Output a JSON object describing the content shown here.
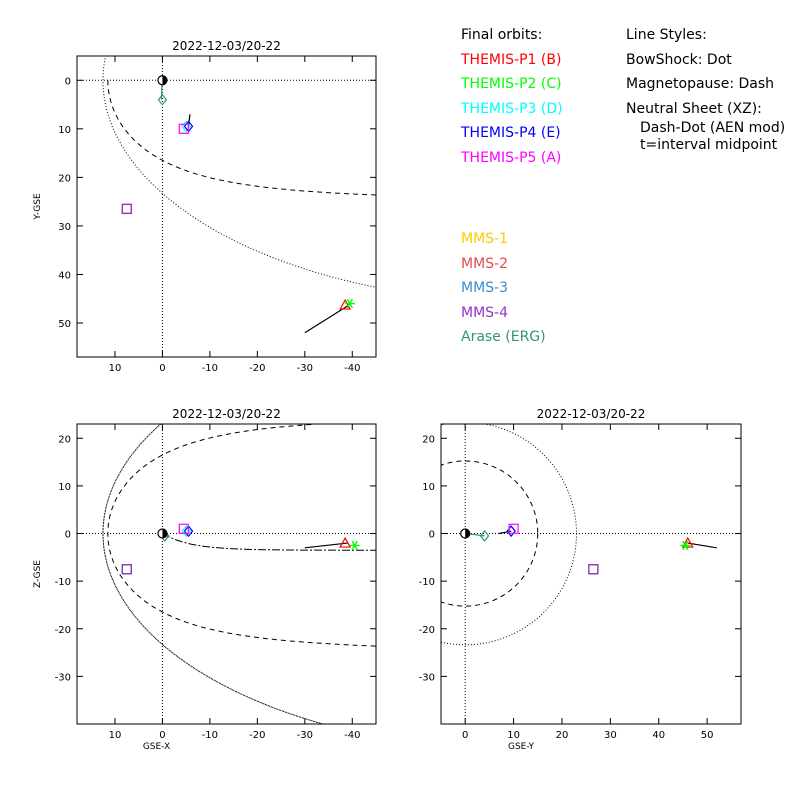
{
  "legend": {
    "final_orbits_title": "Final orbits:",
    "themis": [
      {
        "label": "THEMIS-P1 (B)",
        "color": "#ff0000"
      },
      {
        "label": "THEMIS-P2 (C)",
        "color": "#00ff00"
      },
      {
        "label": "THEMIS-P3 (D)",
        "color": "#00ffff"
      },
      {
        "label": "THEMIS-P4 (E)",
        "color": "#0000ff"
      },
      {
        "label": "THEMIS-P5 (A)",
        "color": "#ff00ff"
      }
    ],
    "mms": [
      {
        "label": "MMS-1",
        "color": "#ffc800"
      },
      {
        "label": "MMS-2",
        "color": "#e14b4b"
      },
      {
        "label": "MMS-3",
        "color": "#3c8cc8"
      },
      {
        "label": "MMS-4",
        "color": "#9632c8"
      },
      {
        "label": "Arase (ERG)",
        "color": "#32966e"
      }
    ],
    "line_styles_title": "Line Styles:",
    "bowshock": "BowShock: Dot",
    "magnetopause": "Magnetopause: Dash",
    "neutral_sheet": "Neutral Sheet (XZ):",
    "neutral_sheet_style": "Dash-Dot (AEN mod)",
    "midpoint_note": "t=interval midpoint"
  },
  "chart_data": [
    {
      "type": "scatter",
      "panel": "xy",
      "title": "2022-12-03/20-22",
      "xlabel": "",
      "ylabel": "Y-GSE",
      "xlim": [
        18,
        -45
      ],
      "ylim": [
        -5,
        57
      ],
      "y_inverted": true,
      "xticks": [
        10,
        0,
        -10,
        -20,
        -30,
        -40
      ],
      "yticks": [
        0,
        10,
        20,
        30,
        40,
        50
      ],
      "grid": false,
      "points": [
        {
          "name": "THEMIS-P1",
          "x": -38.5,
          "y": 46.3,
          "marker": "triangle",
          "color": "#ff0000"
        },
        {
          "name": "THEMIS-P2",
          "x": -39.5,
          "y": 46.0,
          "marker": "asterisk",
          "color": "#00ff00"
        },
        {
          "name": "THEMIS-P3",
          "x": -5.0,
          "y": 9.5,
          "marker": "diamond",
          "color": "#00ffff"
        },
        {
          "name": "THEMIS-P4",
          "x": -5.5,
          "y": 9.5,
          "marker": "diamond",
          "color": "#0000ff"
        },
        {
          "name": "THEMIS-P5",
          "x": -4.5,
          "y": 10.0,
          "marker": "square",
          "color": "#ff00ff"
        },
        {
          "name": "MMS-1",
          "x": 7.5,
          "y": 26.5,
          "marker": "square",
          "color": "#ffc800"
        },
        {
          "name": "MMS-2",
          "x": 7.5,
          "y": 26.5,
          "marker": "square",
          "color": "#e14b4b"
        },
        {
          "name": "MMS-3",
          "x": 7.5,
          "y": 26.5,
          "marker": "square",
          "color": "#3c8cc8"
        },
        {
          "name": "MMS-4",
          "x": 7.5,
          "y": 26.5,
          "marker": "square",
          "color": "#9632c8"
        },
        {
          "name": "Arase (ERG)",
          "x": 0.0,
          "y": 4.0,
          "marker": "diamond",
          "color": "#32966e"
        }
      ]
    },
    {
      "type": "scatter",
      "panel": "xz",
      "title": "2022-12-03/20-22",
      "xlabel": "GSE-X",
      "ylabel": "Z-GSE",
      "xlim": [
        18,
        -45
      ],
      "ylim": [
        -40,
        23
      ],
      "xticks": [
        10,
        0,
        -10,
        -20,
        -30,
        -40
      ],
      "yticks": [
        20,
        10,
        0,
        -10,
        -20,
        -30
      ],
      "grid": false,
      "points": [
        {
          "name": "THEMIS-P1",
          "x": -38.5,
          "y": -2.0,
          "marker": "triangle",
          "color": "#ff0000"
        },
        {
          "name": "THEMIS-P2",
          "x": -40.5,
          "y": -2.5,
          "marker": "asterisk",
          "color": "#00ff00"
        },
        {
          "name": "THEMIS-P3",
          "x": -5.0,
          "y": 0.5,
          "marker": "diamond",
          "color": "#00ffff"
        },
        {
          "name": "THEMIS-P4",
          "x": -5.5,
          "y": 0.5,
          "marker": "diamond",
          "color": "#0000ff"
        },
        {
          "name": "THEMIS-P5",
          "x": -4.5,
          "y": 1.0,
          "marker": "square",
          "color": "#ff00ff"
        },
        {
          "name": "MMS-1",
          "x": 7.5,
          "y": -7.5,
          "marker": "square",
          "color": "#ffc800"
        },
        {
          "name": "MMS-2",
          "x": 7.5,
          "y": -7.5,
          "marker": "square",
          "color": "#e14b4b"
        },
        {
          "name": "MMS-3",
          "x": 7.5,
          "y": -7.5,
          "marker": "square",
          "color": "#3c8cc8"
        },
        {
          "name": "MMS-4",
          "x": 7.5,
          "y": -7.5,
          "marker": "square",
          "color": "#9632c8"
        },
        {
          "name": "Arase (ERG)",
          "x": -0.5,
          "y": -0.5,
          "marker": "diamond",
          "color": "#32966e"
        }
      ]
    },
    {
      "type": "scatter",
      "panel": "yz",
      "title": "2022-12-03/20-22",
      "xlabel": "GSE-Y",
      "ylabel": "",
      "xlim": [
        -5,
        57
      ],
      "ylim": [
        -40,
        23
      ],
      "xticks": [
        0,
        10,
        20,
        30,
        40,
        50
      ],
      "yticks": [
        20,
        10,
        0,
        -10,
        -20,
        -30
      ],
      "grid": false,
      "points": [
        {
          "name": "THEMIS-P1",
          "x": 46.0,
          "y": -2.0,
          "marker": "triangle",
          "color": "#ff0000"
        },
        {
          "name": "THEMIS-P2",
          "x": 45.5,
          "y": -2.5,
          "marker": "asterisk",
          "color": "#00ff00"
        },
        {
          "name": "THEMIS-P3",
          "x": 9.5,
          "y": 0.5,
          "marker": "diamond",
          "color": "#00ffff"
        },
        {
          "name": "THEMIS-P4",
          "x": 9.5,
          "y": 0.5,
          "marker": "diamond",
          "color": "#0000ff"
        },
        {
          "name": "THEMIS-P5",
          "x": 10.0,
          "y": 1.0,
          "marker": "square",
          "color": "#ff00ff"
        },
        {
          "name": "MMS-1",
          "x": 26.5,
          "y": -7.5,
          "marker": "square",
          "color": "#ffc800"
        },
        {
          "name": "MMS-2",
          "x": 26.5,
          "y": -7.5,
          "marker": "square",
          "color": "#e14b4b"
        },
        {
          "name": "MMS-3",
          "x": 26.5,
          "y": -7.5,
          "marker": "square",
          "color": "#3c8cc8"
        },
        {
          "name": "MMS-4",
          "x": 26.5,
          "y": -7.5,
          "marker": "square",
          "color": "#9632c8"
        },
        {
          "name": "Arase (ERG)",
          "x": 4.0,
          "y": -0.5,
          "marker": "diamond",
          "color": "#32966e"
        }
      ]
    }
  ]
}
